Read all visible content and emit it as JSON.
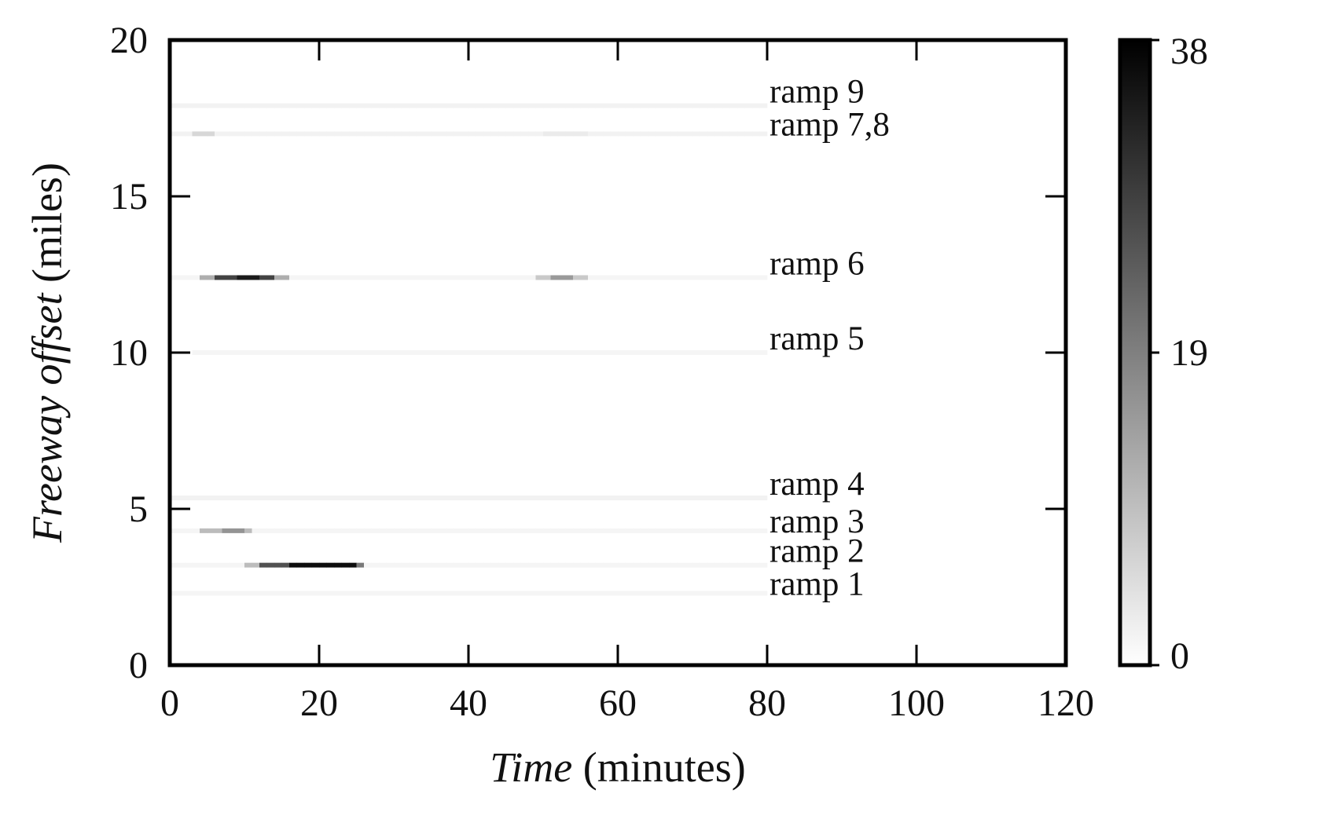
{
  "chart_data": {
    "type": "heatmap",
    "xlabel": {
      "italic": "Time",
      "rest": " (minutes)"
    },
    "ylabel": {
      "italic": "Freeway offset",
      "rest": " (miles)"
    },
    "xlim": [
      0,
      120
    ],
    "ylim": [
      0,
      20
    ],
    "x_ticks": [
      0,
      20,
      40,
      60,
      80,
      100,
      120
    ],
    "y_ticks": [
      0,
      5,
      10,
      15,
      20
    ],
    "colorbar": {
      "min": 0,
      "max": 38,
      "ticks": [
        0,
        19,
        38
      ],
      "low_color": "#ffffff",
      "high_color": "#000000"
    },
    "grid": false,
    "cell_width_minutes": 1,
    "ramps": [
      {
        "label": "ramp 9",
        "offset": 17.9,
        "segments": [
          [
            0,
            80,
            2
          ]
        ]
      },
      {
        "label": "ramp 7,8",
        "offset": 17.0,
        "segments": [
          [
            0,
            3,
            2
          ],
          [
            3,
            6,
            6
          ],
          [
            6,
            80,
            2
          ],
          [
            50,
            56,
            3
          ]
        ]
      },
      {
        "label": "ramp 6",
        "offset": 12.4,
        "segments": [
          [
            0,
            80,
            1.5
          ],
          [
            4,
            6,
            12
          ],
          [
            6,
            9,
            28
          ],
          [
            9,
            12,
            34
          ],
          [
            12,
            14,
            28
          ],
          [
            14,
            16,
            12
          ],
          [
            49,
            51,
            8
          ],
          [
            51,
            54,
            15
          ],
          [
            54,
            56,
            8
          ]
        ]
      },
      {
        "label": "ramp 5",
        "offset": 10.0,
        "segments": [
          [
            3,
            80,
            1.5
          ]
        ]
      },
      {
        "label": "ramp 4",
        "offset": 5.35,
        "segments": [
          [
            0,
            80,
            2
          ]
        ]
      },
      {
        "label": "ramp 3",
        "offset": 4.3,
        "segments": [
          [
            0,
            80,
            1.5
          ],
          [
            4,
            7,
            10
          ],
          [
            7,
            10,
            16
          ],
          [
            10,
            11,
            10
          ]
        ]
      },
      {
        "label": "ramp 2",
        "offset": 3.2,
        "segments": [
          [
            0,
            80,
            1.5
          ],
          [
            10,
            12,
            10
          ],
          [
            12,
            16,
            26
          ],
          [
            16,
            25,
            36
          ],
          [
            25,
            26,
            20
          ]
        ]
      },
      {
        "label": "ramp 1",
        "offset": 2.3,
        "segments": [
          [
            0,
            80,
            1.5
          ]
        ]
      }
    ]
  }
}
